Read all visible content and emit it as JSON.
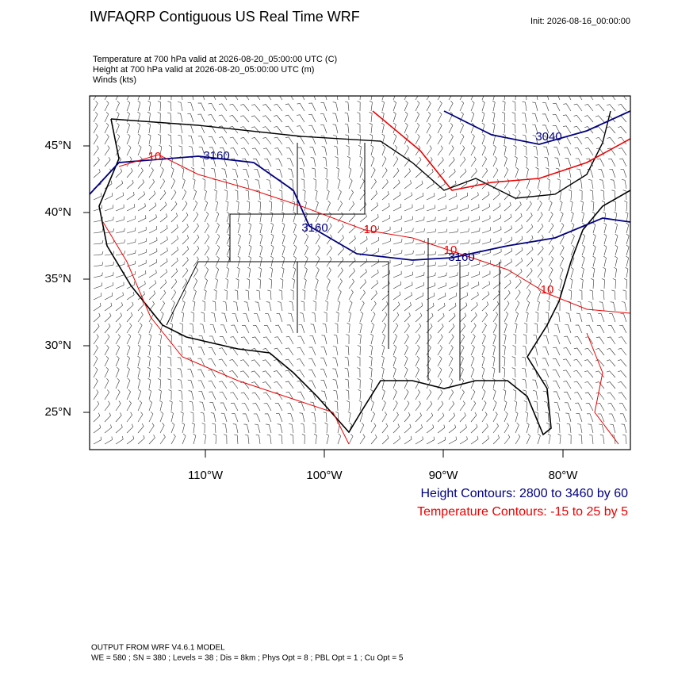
{
  "header": {
    "title": "IWFAQRP Contiguous US Real Time WRF",
    "init": "Init: 2026-08-16_00:00:00"
  },
  "subtitles": [
    "Temperature at 700 hPa valid at 2026-08-20_05:00:00 UTC   (C)",
    "Height at 700 hPa valid at 2026-08-20_05:00:00 UTC   (m)",
    "Winds   (kts)"
  ],
  "map": {
    "lat_labels": [
      "45°N",
      "40°N",
      "35°N",
      "30°N",
      "25°N"
    ],
    "lon_labels": [
      "110°W",
      "100°W",
      "90°W",
      "80°W"
    ],
    "height_labels": [
      "3160",
      "3160",
      "3160",
      "3040"
    ],
    "temperature_labels": [
      "10",
      "10",
      "10",
      "10"
    ]
  },
  "legend": {
    "height": "Height Contours: 2800 to 3460 by 60",
    "temperature": "Temperature Contours: -15 to 25 by 5"
  },
  "footer": [
    "OUTPUT FROM WRF V4.6.1 MODEL",
    "WE = 580 ; SN = 380 ; Levels = 38 ; Dis = 8km ; Phys Opt = 8 ; PBL Opt = 1 ; Cu Opt = 5"
  ]
}
